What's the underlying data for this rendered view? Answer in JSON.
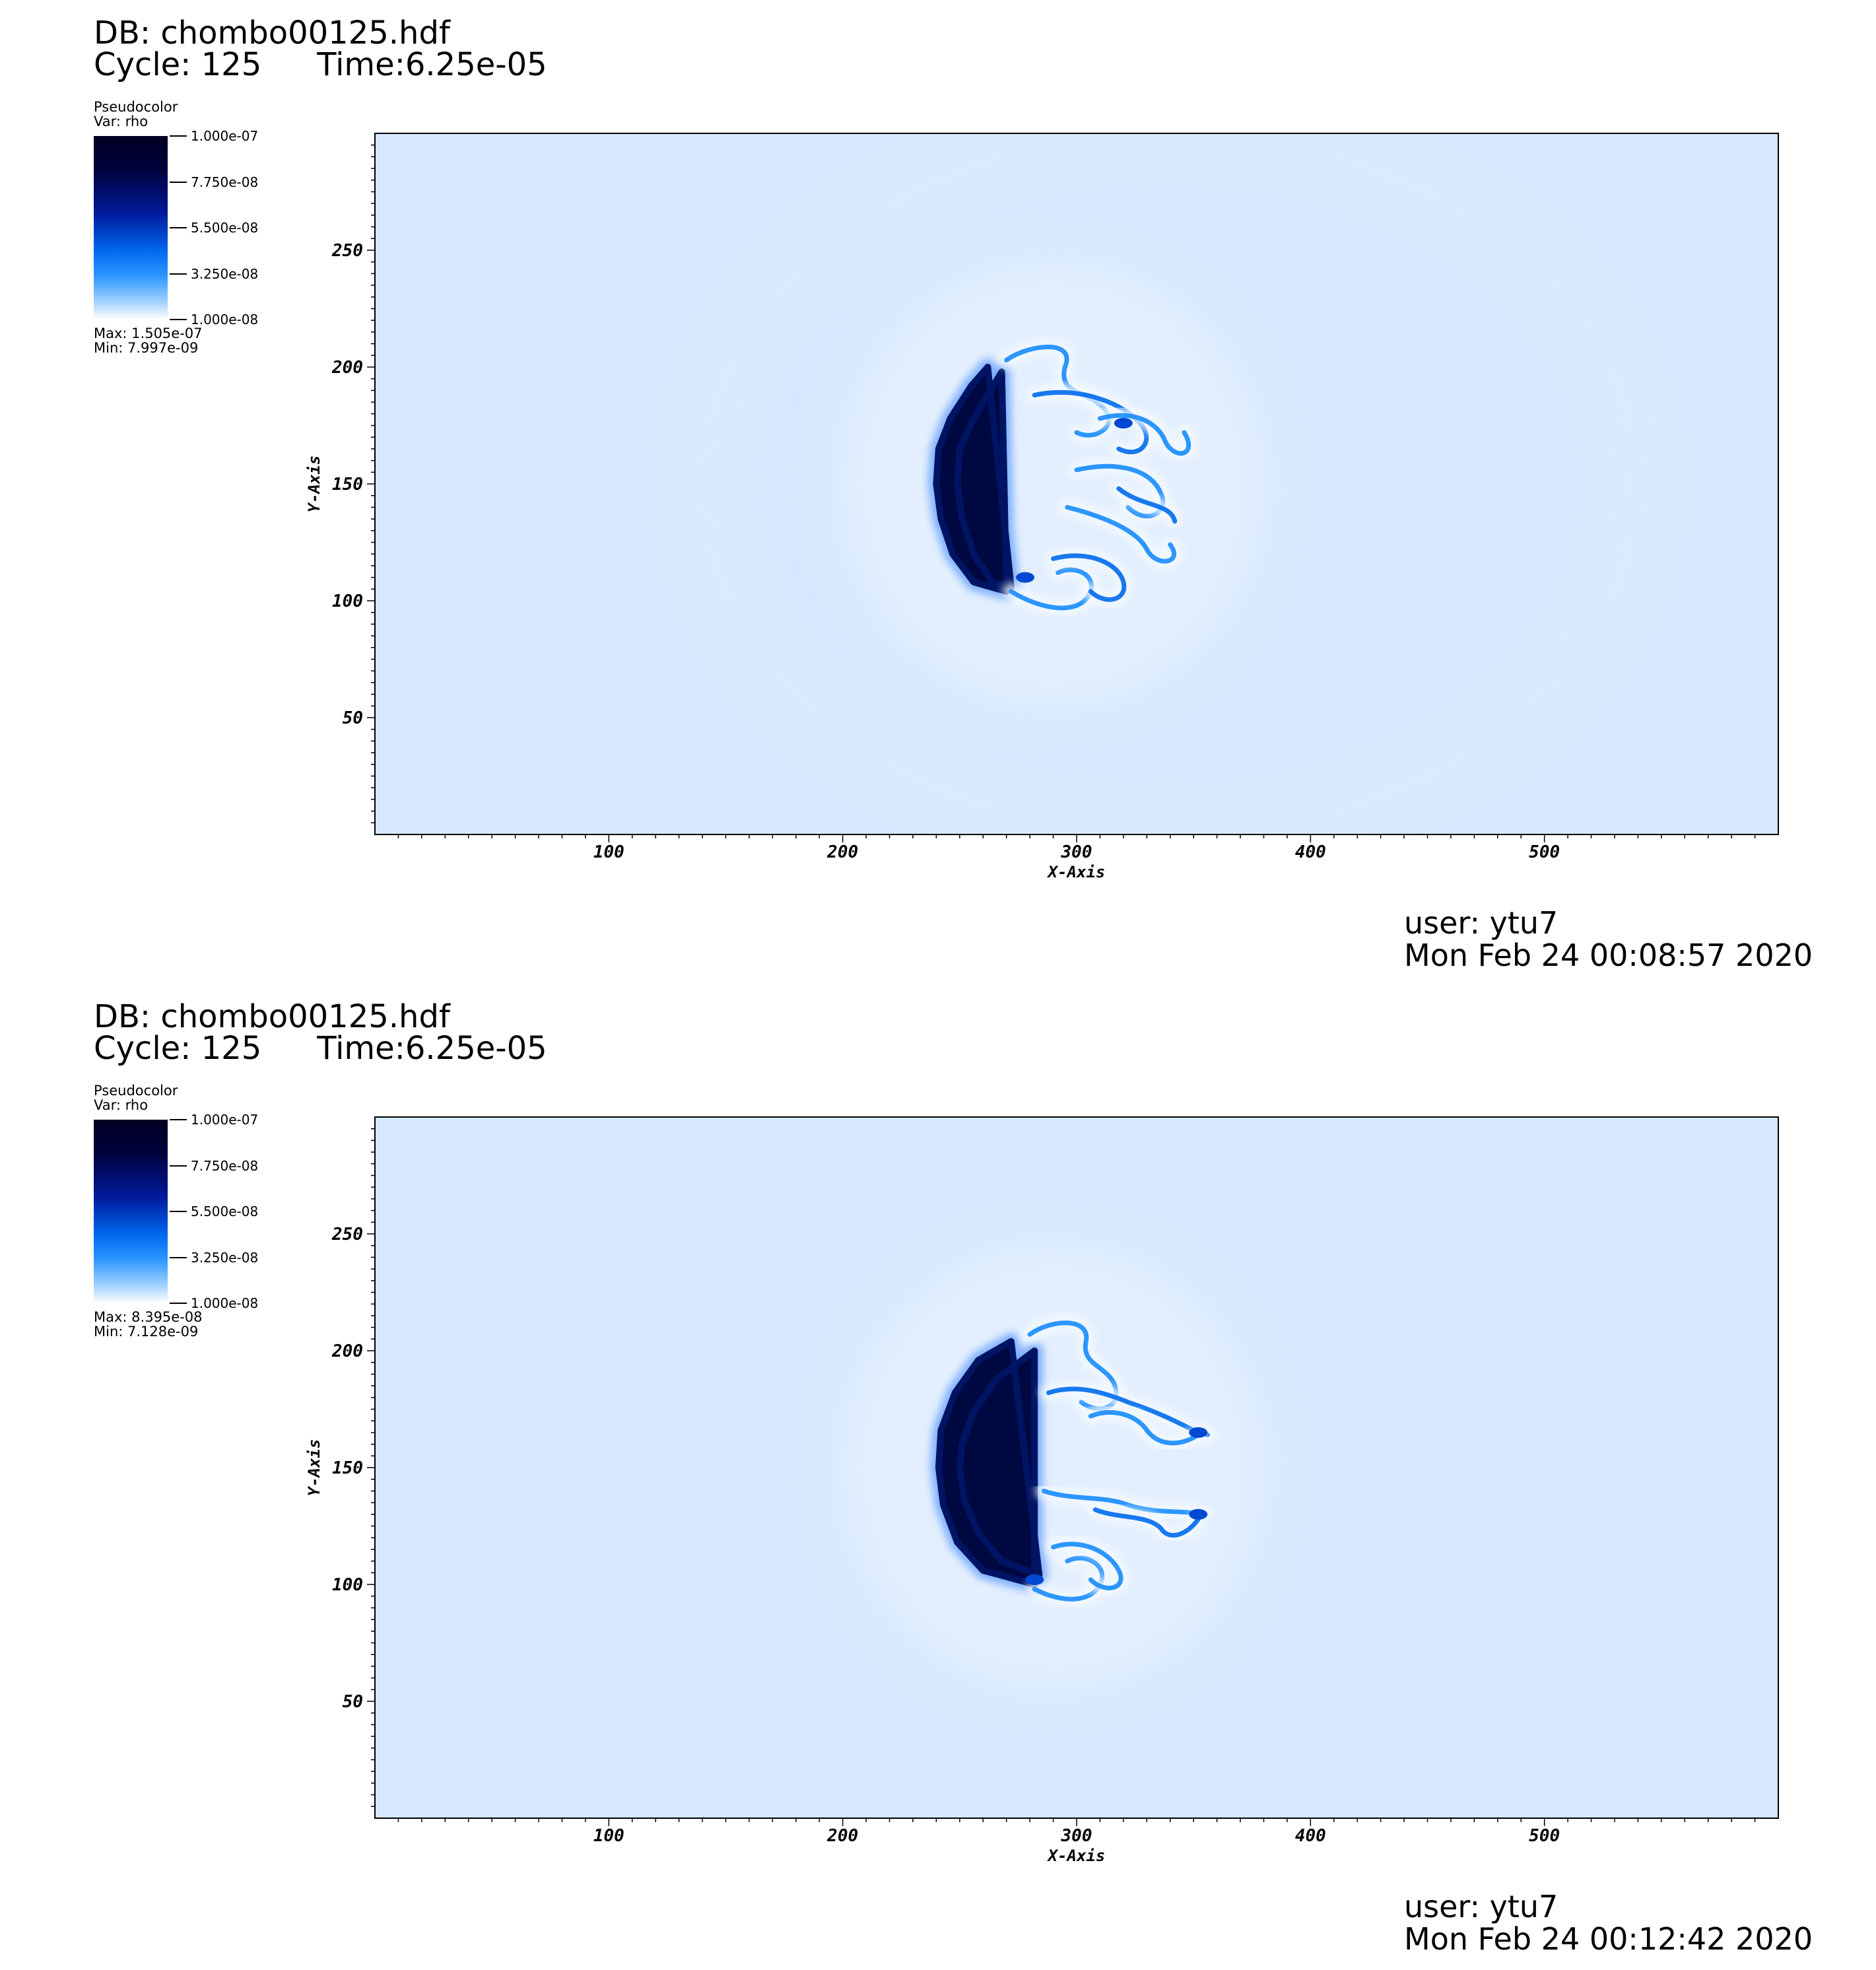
{
  "chart_data": [
    {
      "type": "heatmap",
      "db_label": "DB: chombo00125.hdf",
      "cycle_label": "Cycle: 125",
      "time_label": "Time:6.25e-05",
      "plot_type": "Pseudocolor",
      "variable": "Var: rho",
      "colorbar_ticks": [
        "1.000e-07",
        "7.750e-08",
        "5.500e-08",
        "3.250e-08",
        "1.000e-08"
      ],
      "colorbar_range": [
        1e-08,
        1e-07
      ],
      "max_label": "Max:  1.505e-07",
      "min_label": "Min:  7.997e-09",
      "xlabel": "X-Axis",
      "ylabel": "Y-Axis",
      "xlim": [
        0,
        600
      ],
      "ylim": [
        0,
        300
      ],
      "xticks": [
        100,
        200,
        300,
        400,
        500
      ],
      "yticks": [
        50,
        100,
        150,
        200,
        250
      ],
      "background_value": 2e-08,
      "feature": "bow shock front near x=240-260, y=105-200 with trailing turbulent eddies to x~350",
      "user": "user: ytu7",
      "timestamp": "Mon Feb 24 00:08:57 2020"
    },
    {
      "type": "heatmap",
      "db_label": "DB: chombo00125.hdf",
      "cycle_label": "Cycle: 125",
      "time_label": "Time:6.25e-05",
      "plot_type": "Pseudocolor",
      "variable": "Var: rho",
      "colorbar_ticks": [
        "1.000e-07",
        "7.750e-08",
        "5.500e-08",
        "3.250e-08",
        "1.000e-08"
      ],
      "colorbar_range": [
        1e-08,
        1e-07
      ],
      "max_label": "Max:  8.395e-08",
      "min_label": "Min:  7.128e-09",
      "xlabel": "X-Axis",
      "ylabel": "Y-Axis",
      "xlim": [
        0,
        600
      ],
      "ylim": [
        0,
        300
      ],
      "xticks": [
        100,
        200,
        300,
        400,
        500
      ],
      "yticks": [
        50,
        100,
        150,
        200,
        250
      ],
      "background_value": 2e-08,
      "feature": "smooth bow shock front near x=240-270, y=100-205 with two trailing jets to x~355",
      "user": "user: ytu7",
      "timestamp": "Mon Feb 24 00:12:42 2020"
    }
  ],
  "colors": {
    "background": "#d6e8fd",
    "colormap": [
      "#ffffff",
      "#0080ff",
      "#0033cc",
      "#000033"
    ],
    "text": "#000000"
  }
}
